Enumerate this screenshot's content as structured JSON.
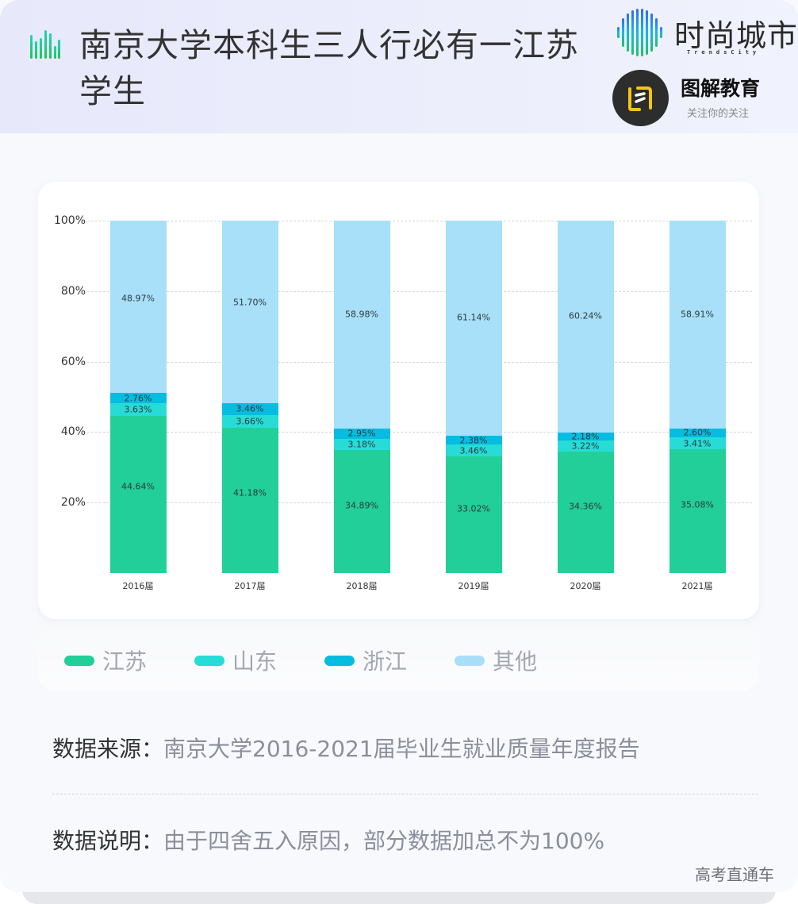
{
  "header": {
    "title": "南京大学本科生三人行必有一江苏学生",
    "brand1": {
      "name": "时尚城市",
      "subtitle": "TrendsCity"
    },
    "brand2": {
      "name": "图解教育",
      "subtitle": "关注你的关注"
    }
  },
  "colors": {
    "jiangsu": "#22cf98",
    "shandong": "#27dcd6",
    "zhejiang": "#07bce1",
    "other": "#a8dff9"
  },
  "chart_data": {
    "type": "bar",
    "stacked": true,
    "title": "南京大学本科生三人行必有一江苏学生",
    "xlabel": "",
    "ylabel": "",
    "ylim": [
      0,
      100
    ],
    "y_ticks": [
      "100%",
      "80%",
      "60%",
      "40%",
      "20%"
    ],
    "grid": true,
    "legend_position": "bottom",
    "categories": [
      "2016届",
      "2017届",
      "2018届",
      "2019届",
      "2020届",
      "2021届"
    ],
    "series": [
      {
        "name": "江苏",
        "values": [
          44.64,
          41.18,
          34.89,
          33.02,
          34.36,
          35.08
        ],
        "labels": [
          "44.64%",
          "41.18%",
          "34.89%",
          "33.02%",
          "34.36%",
          "35.08%"
        ]
      },
      {
        "name": "山东",
        "values": [
          3.63,
          3.66,
          3.18,
          3.46,
          3.22,
          3.41
        ],
        "labels": [
          "3.63%",
          "3.66%",
          "3.18%",
          "3.46%",
          "3.22%",
          "3.41%"
        ]
      },
      {
        "name": "浙江",
        "values": [
          2.76,
          3.46,
          2.95,
          2.38,
          2.18,
          2.6
        ],
        "labels": [
          "2.76%",
          "3.46%",
          "2.95%",
          "2.38%",
          "2.18%",
          "2.60%"
        ]
      },
      {
        "name": "其他",
        "values": [
          48.97,
          51.7,
          58.98,
          61.14,
          60.24,
          58.91
        ],
        "labels": [
          "48.97%",
          "51.70%",
          "58.98%",
          "61.14%",
          "60.24%",
          "58.91%"
        ]
      }
    ]
  },
  "legend": [
    {
      "label": "江苏"
    },
    {
      "label": "山东"
    },
    {
      "label": "浙江"
    },
    {
      "label": "其他"
    }
  ],
  "info": {
    "source_key": "数据来源：",
    "source_value": "南京大学2016-2021届毕业生就业质量年度报告",
    "note_key": "数据说明：",
    "note_value": "由于四舍五入原因，部分数据加总不为100%"
  },
  "footer": {
    "credit": "高考直通车"
  }
}
